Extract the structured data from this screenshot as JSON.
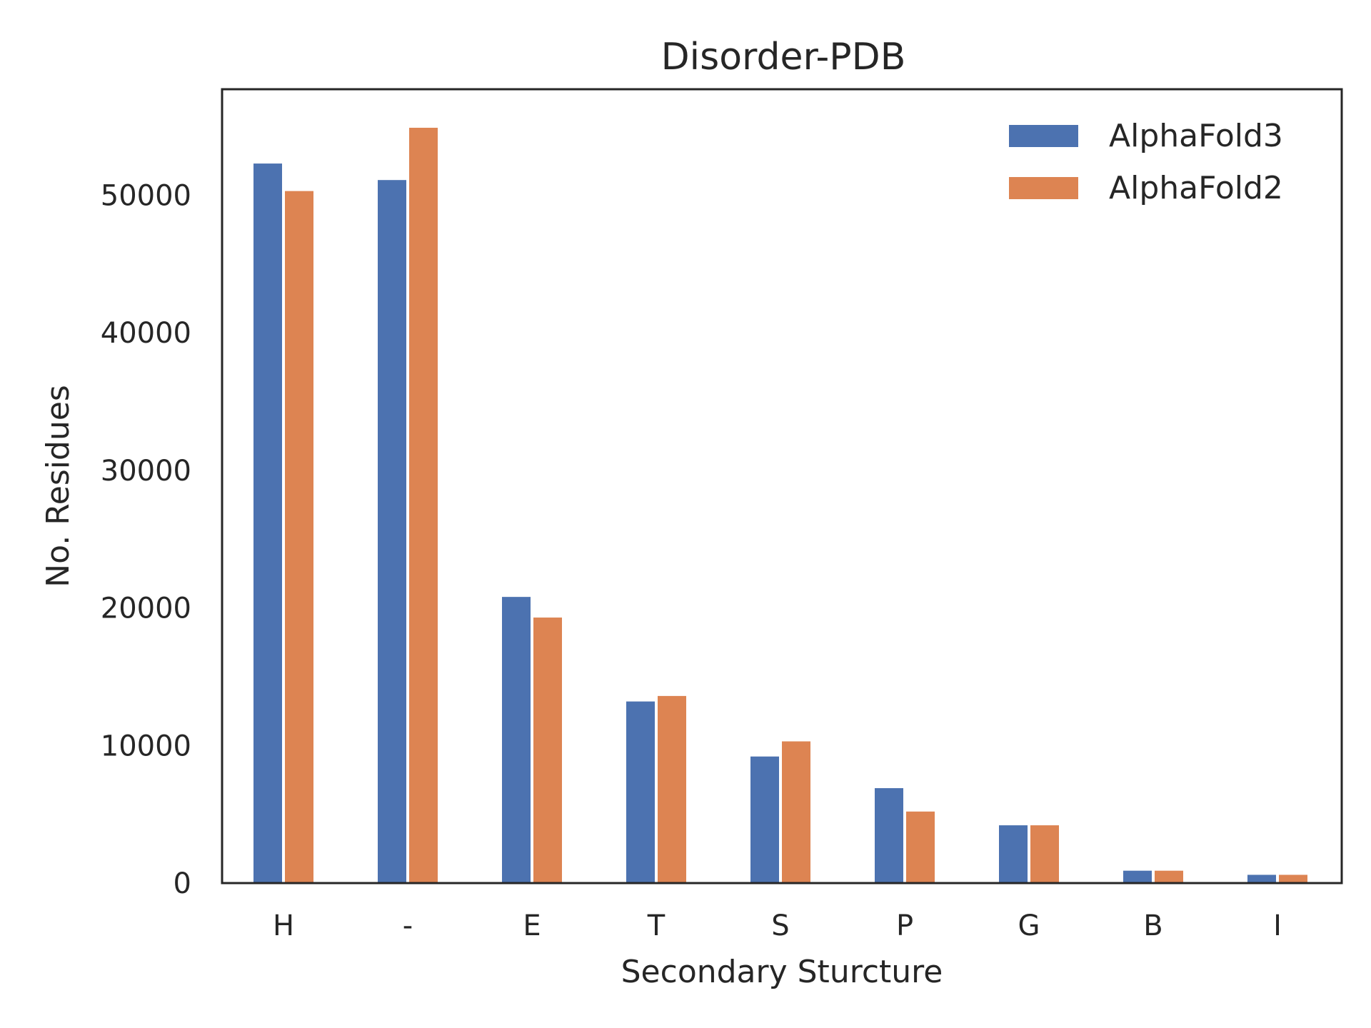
{
  "chart_data": {
    "type": "bar",
    "title": "Disorder-PDB",
    "xlabel": "Secondary Sturcture",
    "ylabel": "No. Residues",
    "categories": [
      "H",
      "-",
      "E",
      "T",
      "S",
      "P",
      "G",
      "B",
      "I"
    ],
    "series": [
      {
        "name": "AlphaFold3",
        "color": "#4c72b0",
        "values": [
          52300,
          51100,
          20800,
          13200,
          9200,
          6900,
          4200,
          900,
          600
        ]
      },
      {
        "name": "AlphaFold2",
        "color": "#dd8452",
        "values": [
          50300,
          54900,
          19300,
          13600,
          10300,
          5200,
          4200,
          900,
          600
        ]
      }
    ],
    "yticks": [
      0,
      10000,
      20000,
      30000,
      40000,
      50000
    ],
    "ylim": [
      0,
      57700
    ],
    "grid": false,
    "legend": "top-right"
  }
}
